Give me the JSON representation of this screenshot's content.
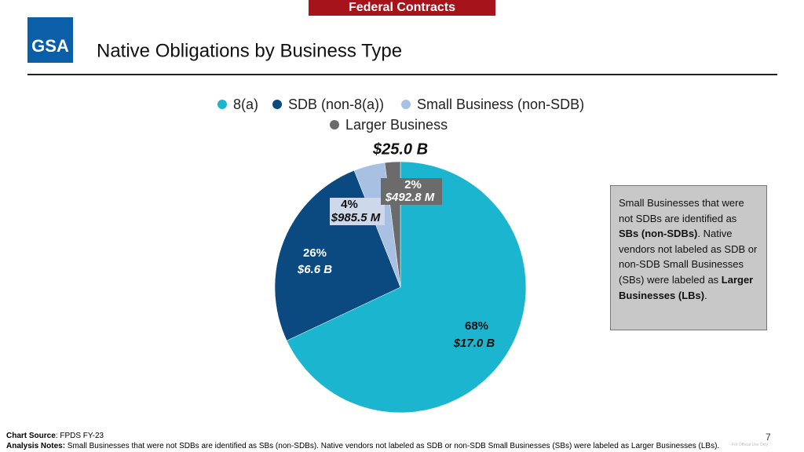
{
  "header": {
    "banner": "Federal Contracts",
    "logo": "GSA"
  },
  "chart_data": {
    "type": "pie",
    "title": "Native Obligations by Business Type",
    "total_label": "$25.0 B",
    "series": [
      {
        "name": "8(a)",
        "color": "#1cb5cf"
      },
      {
        "name": "SDB (non-8(a))",
        "color": "#0a4a80"
      },
      {
        "name": "Small Business (non-SDB)",
        "color": "#a8c0e2"
      },
      {
        "name": "Larger Business",
        "color": "#6b6b6b"
      }
    ],
    "values": [
      68,
      26,
      4,
      2
    ],
    "value_labels": [
      "68%",
      "26%",
      "4%",
      "2%"
    ],
    "amounts": [
      "$17.0 B",
      "$6.6 B",
      "$985.5 M",
      "$492.8 M"
    ]
  },
  "sidebar": [
    {
      "text": "Small Businesses that were not SDBs are identified as "
    },
    {
      "text": "SBs (non-SDBs)",
      "bold": true
    },
    {
      "text": ". Native vendors not labeled as SDB or non-SDB Small Businesses (SBs) were labeled as "
    },
    {
      "text": "Larger Businesses (LBs)",
      "bold": true
    },
    {
      "text": "."
    }
  ],
  "footer": {
    "source_label": "Chart Source",
    "source_text": ": FPDS FY-23",
    "notes_label": "Analysis Notes:",
    "notes_text": " Small Businesses that were not SDBs are identified as SBs (non-SDBs).  Native vendors not labeled as SDB or non-SDB Small Businesses (SBs) were labeled as Larger Businesses (LBs).",
    "page": "7",
    "marking": "For Official Use Only"
  }
}
